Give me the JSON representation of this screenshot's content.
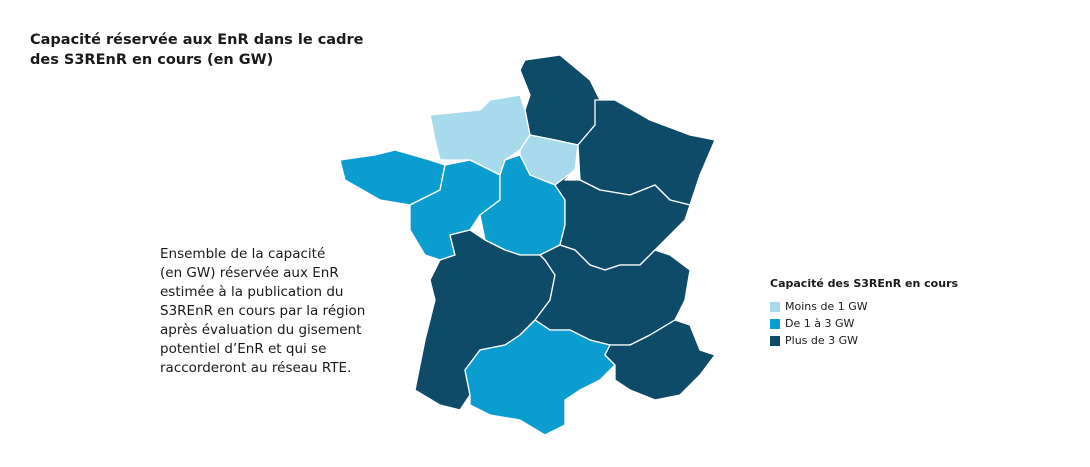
{
  "title": "Capacité réservée aux EnR dans le cadre des S3REnR en cours (en GW)",
  "description": [
    "Ensemble de la capacité",
    "(en GW) réservée aux EnR",
    "estimée à la publication du",
    "S3REnR en cours par la région",
    "après évaluation du gisement",
    "potentiel d’EnR et qui se",
    "raccorderont au réseau RTE."
  ],
  "legend": {
    "title": "Capacité des S3REnR en cours",
    "items": [
      {
        "label": "Moins de 1 GW",
        "color": "#a8daed"
      },
      {
        "label": "De 1 à 3 GW",
        "color": "#0b9dd0"
      },
      {
        "label": "Plus de 3 GW",
        "color": "#0d4b68"
      }
    ]
  }
}
